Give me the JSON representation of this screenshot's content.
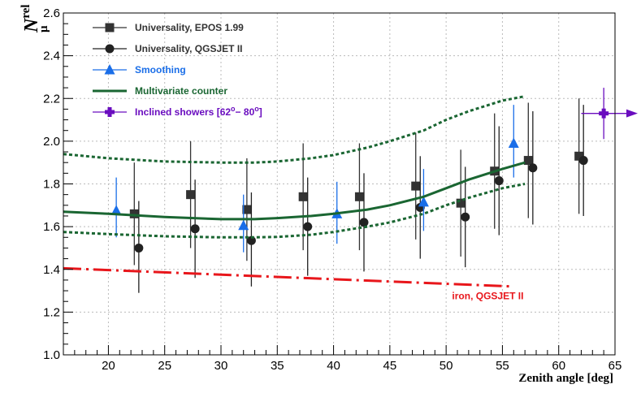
{
  "chart_data": {
    "type": "scatter",
    "title": "",
    "xlabel": "Zenith angle [deg]",
    "ylabel": {
      "symbol": "N",
      "sup": "rel",
      "sub": "μ"
    },
    "xlim": [
      16,
      65
    ],
    "ylim": [
      1.0,
      2.6
    ],
    "x_ticks": [
      20,
      25,
      30,
      35,
      40,
      45,
      50,
      55,
      60,
      65
    ],
    "y_ticks": [
      1.0,
      1.2,
      1.4,
      1.6,
      1.8,
      2.0,
      2.2,
      2.4,
      2.6
    ],
    "grid": true,
    "legend_position": "top-left",
    "colors": {
      "epos": "#333333",
      "qgsjet": "#222222",
      "smoothing": "#1a6ee8",
      "multivariate": "#1a6632",
      "inclined": "#6a0dbf",
      "iron": "#e8161b"
    },
    "series": [
      {
        "name": "Universality, EPOS 1.99",
        "marker": "square",
        "color_key": "epos",
        "points": [
          {
            "x": 22.3,
            "y": 1.66,
            "lo": 1.42,
            "hi": 1.9
          },
          {
            "x": 27.3,
            "y": 1.75,
            "lo": 1.5,
            "hi": 2.0
          },
          {
            "x": 32.3,
            "y": 1.68,
            "lo": 1.44,
            "hi": 1.92
          },
          {
            "x": 37.3,
            "y": 1.74,
            "lo": 1.49,
            "hi": 1.99
          },
          {
            "x": 42.3,
            "y": 1.74,
            "lo": 1.49,
            "hi": 1.99
          },
          {
            "x": 47.3,
            "y": 1.79,
            "lo": 1.54,
            "hi": 2.04
          },
          {
            "x": 51.3,
            "y": 1.71,
            "lo": 1.46,
            "hi": 1.96
          },
          {
            "x": 54.3,
            "y": 1.86,
            "lo": 1.59,
            "hi": 2.13
          },
          {
            "x": 57.3,
            "y": 1.91,
            "lo": 1.64,
            "hi": 2.18
          },
          {
            "x": 61.8,
            "y": 1.93,
            "lo": 1.66,
            "hi": 2.2
          }
        ]
      },
      {
        "name": "Universality, QGSJET II",
        "marker": "circle",
        "color_key": "qgsjet",
        "points": [
          {
            "x": 22.7,
            "y": 1.5,
            "lo": 1.29,
            "hi": 1.72
          },
          {
            "x": 27.7,
            "y": 1.59,
            "lo": 1.36,
            "hi": 1.82
          },
          {
            "x": 32.7,
            "y": 1.535,
            "lo": 1.32,
            "hi": 1.76
          },
          {
            "x": 37.7,
            "y": 1.6,
            "lo": 1.37,
            "hi": 1.83
          },
          {
            "x": 42.7,
            "y": 1.62,
            "lo": 1.39,
            "hi": 1.85
          },
          {
            "x": 47.7,
            "y": 1.69,
            "lo": 1.45,
            "hi": 1.93
          },
          {
            "x": 51.7,
            "y": 1.645,
            "lo": 1.41,
            "hi": 1.88
          },
          {
            "x": 54.7,
            "y": 1.815,
            "lo": 1.56,
            "hi": 2.07
          },
          {
            "x": 57.7,
            "y": 1.875,
            "lo": 1.61,
            "hi": 2.14
          },
          {
            "x": 62.2,
            "y": 1.91,
            "lo": 1.65,
            "hi": 2.17
          }
        ]
      },
      {
        "name": "Smoothing",
        "marker": "triangle",
        "color_key": "smoothing",
        "points": [
          {
            "x": 20.7,
            "y": 1.675,
            "lo": 1.55,
            "hi": 1.83
          },
          {
            "x": 32.0,
            "y": 1.605,
            "lo": 1.48,
            "hi": 1.75
          },
          {
            "x": 40.3,
            "y": 1.66,
            "lo": 1.52,
            "hi": 1.81
          },
          {
            "x": 48.0,
            "y": 1.715,
            "lo": 1.58,
            "hi": 1.87
          },
          {
            "x": 56.0,
            "y": 1.99,
            "lo": 1.83,
            "hi": 2.17
          }
        ]
      },
      {
        "name": "Multivariate counter",
        "type": "line",
        "color_key": "multivariate",
        "x": [
          16,
          20,
          25,
          30,
          33,
          35,
          38,
          40,
          43,
          45,
          48,
          50,
          52,
          55,
          57
        ],
        "y": [
          1.67,
          1.66,
          1.645,
          1.635,
          1.635,
          1.64,
          1.65,
          1.66,
          1.68,
          1.7,
          1.74,
          1.78,
          1.82,
          1.87,
          1.9
        ],
        "band_upper": [
          1.94,
          1.92,
          1.905,
          1.9,
          1.9,
          1.905,
          1.92,
          1.935,
          1.97,
          2.0,
          2.05,
          2.1,
          2.14,
          2.19,
          2.21
        ],
        "band_lower": [
          1.575,
          1.565,
          1.555,
          1.55,
          1.55,
          1.552,
          1.562,
          1.575,
          1.6,
          1.62,
          1.66,
          1.7,
          1.735,
          1.78,
          1.8
        ]
      },
      {
        "name": "Inclined showers [62°-80°]",
        "marker": "cross",
        "color_key": "inclined",
        "points": [
          {
            "x": 64.0,
            "y": 2.13,
            "lo": 2.01,
            "hi": 2.25,
            "xlo": 62.0,
            "xhi": 65.0
          }
        ]
      },
      {
        "name": "iron, QGSJET II",
        "type": "line",
        "color_key": "iron",
        "x": [
          16,
          56
        ],
        "y": [
          1.405,
          1.32
        ]
      }
    ],
    "legend": [
      {
        "label": "Universality, EPOS 1.99",
        "color_key": "epos",
        "marker": "square"
      },
      {
        "label": "Universality, QGSJET II",
        "color_key": "qgsjet",
        "marker": "circle"
      },
      {
        "label": "Smoothing",
        "color_key": "smoothing",
        "marker": "triangle"
      },
      {
        "label": "Multivariate counter",
        "color_key": "multivariate",
        "marker": "line"
      },
      {
        "label": "Inclined showers [62",
        "label_sup1": "o",
        "label_mid": "− 80",
        "label_sup2": "o",
        "label_end": "]",
        "color_key": "inclined",
        "marker": "cross"
      }
    ],
    "annotation": {
      "text": "iron, QGSJET II",
      "color_key": "iron",
      "x": 55.0,
      "y": 1.275
    }
  }
}
